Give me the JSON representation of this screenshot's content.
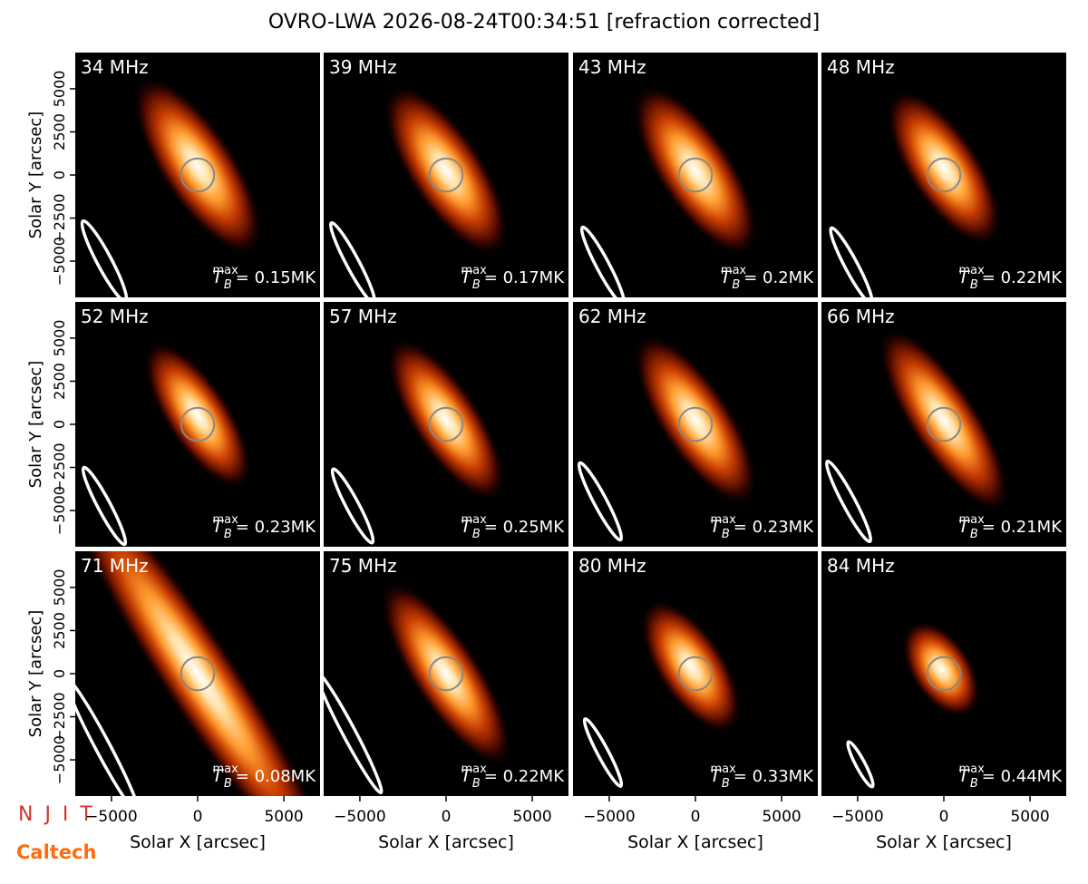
{
  "title": "OVRO-LWA 2026-08-24T00:34:51 [refraction corrected]",
  "logos": [
    "N J I T",
    "Caltech"
  ],
  "chart_data": [
    {
      "type": "image",
      "label": "34 MHz",
      "tb": {
        "symbol": "T",
        "sub": "B",
        "sup": "max",
        "text": "= 0.15MK"
      },
      "xlim": [
        -7100,
        7100
      ],
      "ylim": [
        -7100,
        7100
      ],
      "ylabel": "Solar Y [arcsec]",
      "yticks": [
        {
          "value": -5000,
          "label": "−5000"
        },
        {
          "value": -2500,
          "label": "−2500"
        },
        0,
        2500,
        5000
      ]
    },
    {
      "type": "image",
      "label": "39 MHz",
      "tb": {
        "symbol": "T",
        "sub": "B",
        "sup": "max",
        "text": "= 0.17MK"
      },
      "xlim": [
        -7100,
        7100
      ],
      "ylim": [
        -7100,
        7100
      ]
    },
    {
      "type": "image",
      "label": "43 MHz",
      "tb": {
        "symbol": "T",
        "sub": "B",
        "sup": "max",
        "text": "= 0.2MK"
      },
      "xlim": [
        -7100,
        7100
      ],
      "ylim": [
        -7100,
        7100
      ]
    },
    {
      "type": "image",
      "label": "48 MHz",
      "tb": {
        "symbol": "T",
        "sub": "B",
        "sup": "max",
        "text": "= 0.22MK"
      },
      "xlim": [
        -7100,
        7100
      ],
      "ylim": [
        -7100,
        7100
      ]
    },
    {
      "type": "image",
      "label": "52 MHz",
      "tb": {
        "symbol": "T",
        "sub": "B",
        "sup": "max",
        "text": "= 0.23MK"
      },
      "xlim": [
        -7100,
        7100
      ],
      "ylim": [
        -7100,
        7100
      ],
      "ylabel": "Solar Y [arcsec]",
      "yticks": [
        {
          "value": -5000,
          "label": "−5000"
        },
        {
          "value": -2500,
          "label": "−2500"
        },
        0,
        2500,
        5000
      ]
    },
    {
      "type": "image",
      "label": "57 MHz",
      "tb": {
        "symbol": "T",
        "sub": "B",
        "sup": "max",
        "text": "= 0.25MK"
      },
      "xlim": [
        -7100,
        7100
      ],
      "ylim": [
        -7100,
        7100
      ]
    },
    {
      "type": "image",
      "label": "62 MHz",
      "tb": {
        "symbol": "T",
        "sub": "B",
        "sup": "max",
        "text": "= 0.23MK"
      },
      "xlim": [
        -7100,
        7100
      ],
      "ylim": [
        -7100,
        7100
      ]
    },
    {
      "type": "image",
      "label": "66 MHz",
      "tb": {
        "symbol": "T",
        "sub": "B",
        "sup": "max",
        "text": "= 0.21MK"
      },
      "xlim": [
        -7100,
        7100
      ],
      "ylim": [
        -7100,
        7100
      ]
    },
    {
      "type": "image",
      "label": "71 MHz",
      "tb": {
        "symbol": "T",
        "sub": "B",
        "sup": "max",
        "text": "= 0.08MK"
      },
      "xlim": [
        -7100,
        7100
      ],
      "ylim": [
        -7100,
        7100
      ],
      "ylabel": "Solar Y [arcsec]",
      "yticks": [
        {
          "value": -5000,
          "label": "−5000"
        },
        {
          "value": -2500,
          "label": "−2500"
        },
        0,
        2500,
        5000
      ],
      "xlabel": "Solar X [arcsec]",
      "xticks": [
        {
          "value": -5000,
          "label": "−5000"
        },
        0,
        5000
      ]
    },
    {
      "type": "image",
      "label": "75 MHz",
      "tb": {
        "symbol": "T",
        "sub": "B",
        "sup": "max",
        "text": "= 0.22MK"
      },
      "xlim": [
        -7100,
        7100
      ],
      "ylim": [
        -7100,
        7100
      ],
      "xlabel": "Solar X [arcsec]",
      "xticks": [
        {
          "value": -5000,
          "label": "−5000"
        },
        0,
        5000
      ]
    },
    {
      "type": "image",
      "label": "80 MHz",
      "tb": {
        "symbol": "T",
        "sub": "B",
        "sup": "max",
        "text": "= 0.33MK"
      },
      "xlim": [
        -7100,
        7100
      ],
      "ylim": [
        -7100,
        7100
      ],
      "xlabel": "Solar X [arcsec]",
      "xticks": [
        {
          "value": -5000,
          "label": "−5000"
        },
        0,
        5000
      ]
    },
    {
      "type": "image",
      "label": "84 MHz",
      "tb": {
        "symbol": "T",
        "sub": "B",
        "sup": "max",
        "text": "= 0.44MK"
      },
      "xlim": [
        -7100,
        7100
      ],
      "ylim": [
        -7100,
        7100
      ],
      "xlabel": "Solar X [arcsec]",
      "xticks": [
        {
          "value": -5000,
          "label": "−5000"
        },
        0,
        5000
      ]
    }
  ]
}
